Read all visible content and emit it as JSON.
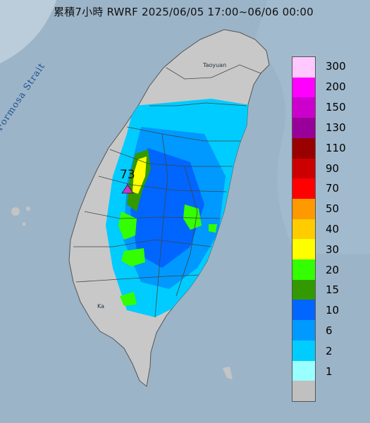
{
  "title": "累積7小時 RWRF 2025/06/05 17:00~06/06 00:00",
  "strait_label": "Formosa Strait",
  "max_value": "73",
  "place_labels": [
    "Taoyuan",
    "Ka"
  ],
  "legend": {
    "labels": [
      "300",
      "200",
      "150",
      "130",
      "110",
      "90",
      "70",
      "50",
      "40",
      "30",
      "20",
      "15",
      "10",
      "6",
      "2",
      "1"
    ],
    "colors": [
      "#ffc8ff",
      "#ff00ff",
      "#cc00cc",
      "#990099",
      "#990000",
      "#cc0000",
      "#ff0000",
      "#ff9900",
      "#ffcc00",
      "#ffff00",
      "#33ff00",
      "#339900",
      "#0066ff",
      "#0099ff",
      "#00ccff",
      "#99ffff",
      "#c0c0c0"
    ]
  },
  "colors": {
    "sea": "#9cb4c8",
    "land": "#c8c8c8",
    "max_marker": "#cc33cc"
  }
}
